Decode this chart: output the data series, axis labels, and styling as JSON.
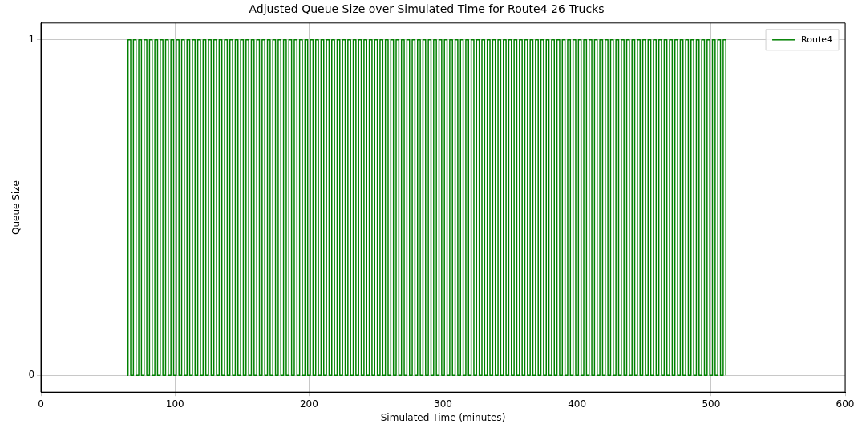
{
  "chart_data": {
    "type": "step",
    "title": "Adjusted Queue Size over Simulated Time for Route4 26 Trucks",
    "xlabel": "Simulated Time (minutes)",
    "ylabel": "Queue Size",
    "xlim": [
      0,
      600
    ],
    "xticks": [
      0,
      100,
      200,
      300,
      400,
      500,
      600
    ],
    "ylim": [
      -0.05,
      1.05
    ],
    "yticks": [
      0,
      1
    ],
    "grid": true,
    "legend": "top right",
    "series": [
      {
        "name": "Route4",
        "color": "#008000",
        "x": [
          64,
          65,
          67,
          69,
          71,
          73,
          75,
          77,
          79,
          81,
          83,
          85,
          87,
          89,
          91,
          93,
          95,
          97,
          99,
          101,
          103,
          105,
          107,
          109,
          111,
          113,
          115,
          117,
          119,
          121,
          123,
          125,
          127,
          129,
          131,
          133,
          135,
          137,
          139,
          141,
          143,
          145,
          147,
          149,
          151,
          153,
          155,
          157,
          159,
          161,
          163,
          165,
          167,
          169,
          171,
          173,
          175,
          177,
          179,
          181,
          183,
          185,
          187,
          189,
          191,
          193,
          195,
          197,
          199,
          201,
          203,
          205,
          207,
          209,
          211,
          213,
          215,
          217,
          219,
          221,
          223,
          225,
          227,
          229,
          231,
          233,
          235,
          237,
          239,
          241,
          243,
          245,
          247,
          249,
          251,
          253,
          255,
          257,
          259,
          261,
          263,
          265,
          267,
          269,
          271,
          273,
          275,
          277,
          279,
          281,
          283,
          285,
          287,
          289,
          291,
          293,
          295,
          297,
          299,
          301,
          303,
          305,
          307,
          309,
          311,
          313,
          315,
          317,
          319,
          321,
          323,
          325,
          327,
          329,
          331,
          333,
          335,
          337,
          339,
          341,
          343,
          345,
          347,
          349,
          351,
          353,
          355,
          357,
          359,
          361,
          363,
          365,
          367,
          369,
          371,
          373,
          375,
          377,
          379,
          381,
          383,
          385,
          387,
          389,
          391,
          393,
          395,
          397,
          399,
          401,
          403,
          405,
          407,
          409,
          411,
          413,
          415,
          417,
          419,
          421,
          423,
          425,
          427,
          429,
          431,
          433,
          435,
          437,
          439,
          441,
          443,
          445,
          447,
          449,
          451,
          453,
          455,
          457,
          459,
          461,
          463,
          465,
          467,
          469,
          471,
          473,
          475,
          477,
          479,
          481,
          483,
          485,
          487,
          489,
          491,
          493,
          495,
          497,
          499,
          501,
          503,
          505,
          507,
          509,
          511
        ],
        "values": [
          0,
          1,
          0,
          1,
          0,
          1,
          0,
          1,
          0,
          1,
          0,
          1,
          0,
          1,
          0,
          1,
          0,
          1,
          0,
          1,
          0,
          1,
          0,
          1,
          0,
          1,
          0,
          1,
          0,
          1,
          0,
          1,
          0,
          1,
          0,
          1,
          0,
          1,
          0,
          1,
          0,
          1,
          0,
          1,
          0,
          1,
          0,
          1,
          0,
          1,
          0,
          1,
          0,
          1,
          0,
          1,
          0,
          1,
          0,
          1,
          0,
          1,
          0,
          1,
          0,
          1,
          0,
          1,
          0,
          1,
          0,
          1,
          0,
          1,
          0,
          1,
          0,
          1,
          0,
          1,
          0,
          1,
          0,
          1,
          0,
          1,
          0,
          1,
          0,
          1,
          0,
          1,
          0,
          1,
          0,
          1,
          0,
          1,
          0,
          1,
          0,
          1,
          0,
          1,
          0,
          1,
          0,
          1,
          0,
          1,
          0,
          1,
          0,
          1,
          0,
          1,
          0,
          1,
          0,
          1,
          0,
          1,
          0,
          1,
          0,
          1,
          0,
          1,
          0,
          1,
          0,
          1,
          0,
          1,
          0,
          1,
          0,
          1,
          0,
          1,
          0,
          1,
          0,
          1,
          0,
          1,
          0,
          1,
          0,
          1,
          0,
          1,
          0,
          1,
          0,
          1,
          0,
          1,
          0,
          1,
          0,
          1,
          0,
          1,
          0,
          1,
          0,
          1,
          0,
          1,
          0,
          1,
          0,
          1,
          0,
          1,
          0,
          1,
          0,
          1,
          0,
          1,
          0,
          1,
          0,
          1,
          0,
          1,
          0,
          1,
          0,
          1,
          0,
          1,
          0,
          1,
          0,
          1,
          0,
          1,
          0,
          1,
          0,
          1,
          0,
          1,
          0,
          1,
          0,
          1,
          0,
          1,
          0,
          1,
          0,
          1,
          0,
          1,
          0,
          1,
          0,
          1,
          0,
          1,
          0
        ]
      }
    ]
  }
}
